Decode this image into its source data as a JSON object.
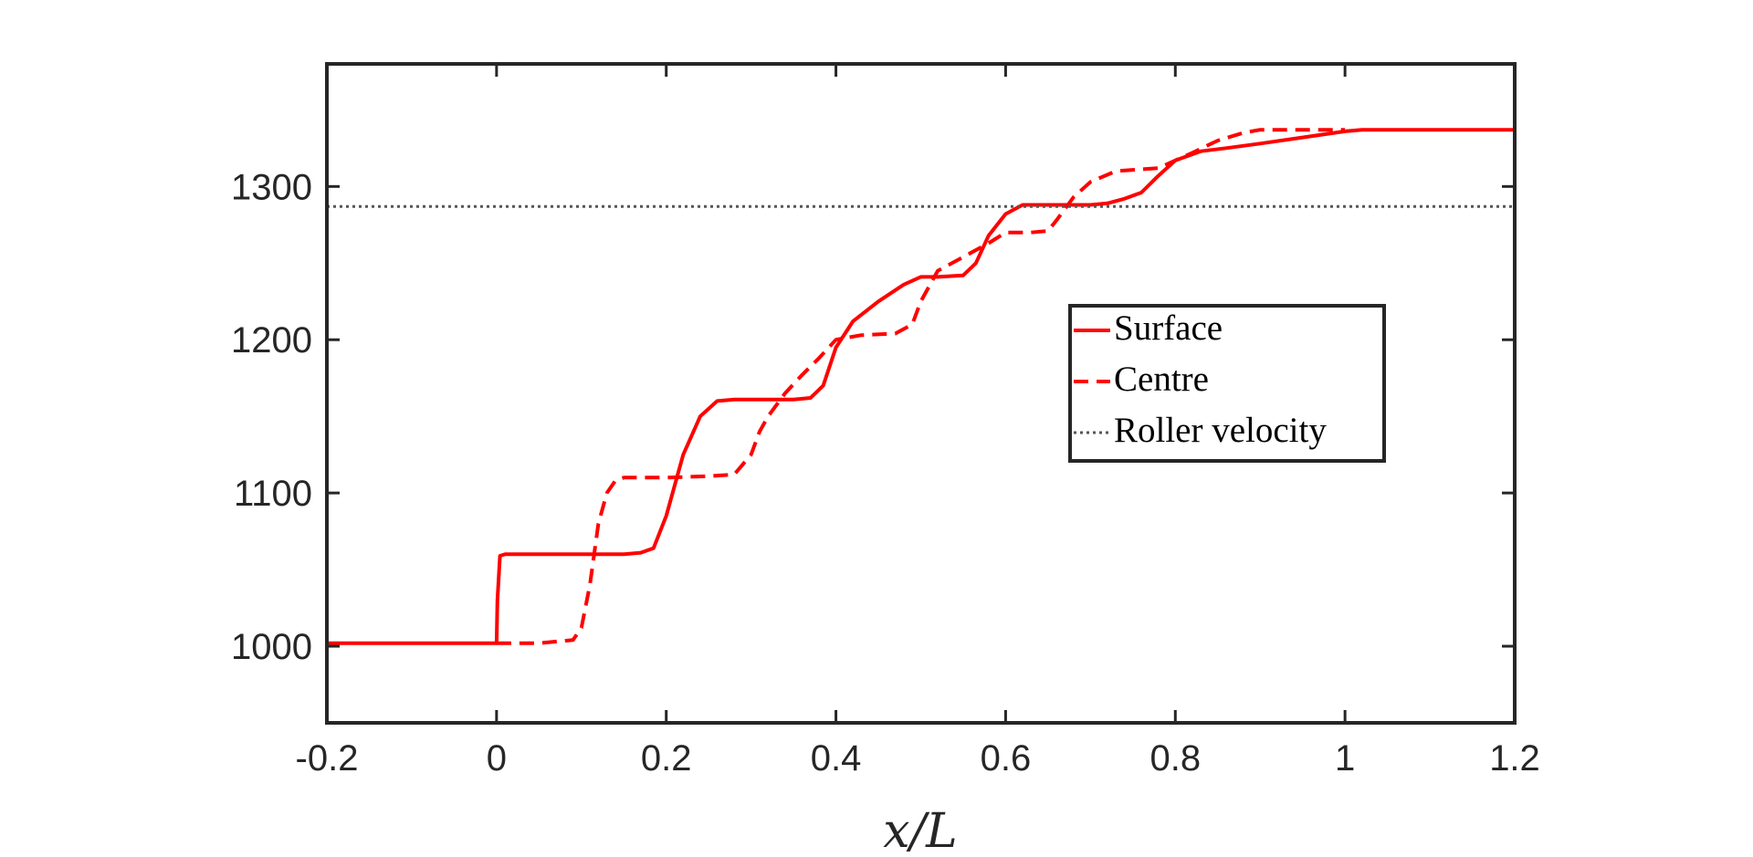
{
  "chart_data": {
    "type": "line",
    "title": "",
    "xlabel": "x/L",
    "ylabel": "",
    "xlim": [
      -0.2,
      1.2
    ],
    "ylim": [
      950,
      1380
    ],
    "grid": false,
    "legend_position": "center-right",
    "x_ticks": [
      -0.2,
      0,
      0.2,
      0.4,
      0.6,
      0.8,
      1,
      1.2
    ],
    "x_tick_labels": [
      "-0.2",
      "0",
      "0.2",
      "0.4",
      "0.6",
      "0.8",
      "1",
      "1.2"
    ],
    "y_ticks": [
      1000,
      1100,
      1200,
      1300
    ],
    "y_tick_labels": [
      "1000",
      "1100",
      "1200",
      "1300"
    ],
    "colors": {
      "surface": "#ff0000",
      "centre": "#ff0000",
      "roller": "#555555",
      "axis": "#262626"
    },
    "series": [
      {
        "name": "Surface",
        "style": "solid",
        "x": [
          -0.2,
          0,
          0.001,
          0.004,
          0.01,
          0.05,
          0.1,
          0.15,
          0.17,
          0.185,
          0.2,
          0.22,
          0.24,
          0.26,
          0.28,
          0.32,
          0.35,
          0.37,
          0.385,
          0.4,
          0.42,
          0.45,
          0.48,
          0.5,
          0.52,
          0.55,
          0.565,
          0.58,
          0.6,
          0.62,
          0.65,
          0.7,
          0.72,
          0.74,
          0.76,
          0.78,
          0.8,
          0.83,
          0.86,
          0.9,
          0.95,
          1.0,
          1.02,
          1.05,
          1.1,
          1.2
        ],
        "y": [
          1002,
          1002,
          1030,
          1059,
          1060,
          1060,
          1060,
          1060,
          1061,
          1064,
          1085,
          1125,
          1150,
          1160,
          1161,
          1161,
          1161,
          1162,
          1170,
          1195,
          1212,
          1225,
          1236,
          1241,
          1241,
          1242,
          1250,
          1268,
          1282,
          1288,
          1288,
          1288,
          1289,
          1292,
          1296,
          1307,
          1317,
          1323,
          1325,
          1328,
          1332,
          1336,
          1337,
          1337,
          1337,
          1337
        ]
      },
      {
        "name": "Centre",
        "style": "dashed",
        "x": [
          0,
          0.05,
          0.09,
          0.1,
          0.11,
          0.12,
          0.13,
          0.14,
          0.15,
          0.2,
          0.25,
          0.28,
          0.3,
          0.31,
          0.32,
          0.34,
          0.36,
          0.38,
          0.4,
          0.43,
          0.47,
          0.49,
          0.5,
          0.52,
          0.55,
          0.58,
          0.6,
          0.63,
          0.65,
          0.66,
          0.68,
          0.7,
          0.73,
          0.78,
          0.82,
          0.85,
          0.88,
          0.9,
          0.95,
          1.0
        ],
        "y": [
          1002,
          1002,
          1004,
          1012,
          1040,
          1080,
          1100,
          1108,
          1110,
          1110,
          1111,
          1112,
          1125,
          1140,
          1150,
          1165,
          1177,
          1188,
          1200,
          1203,
          1204,
          1210,
          1225,
          1245,
          1254,
          1263,
          1270,
          1270,
          1271,
          1278,
          1293,
          1303,
          1310,
          1312,
          1322,
          1330,
          1335,
          1337,
          1337,
          1337
        ]
      },
      {
        "name": "Roller velocity",
        "style": "dotted",
        "x": [
          -0.2,
          1.2
        ],
        "y": [
          1287,
          1287
        ]
      }
    ]
  }
}
